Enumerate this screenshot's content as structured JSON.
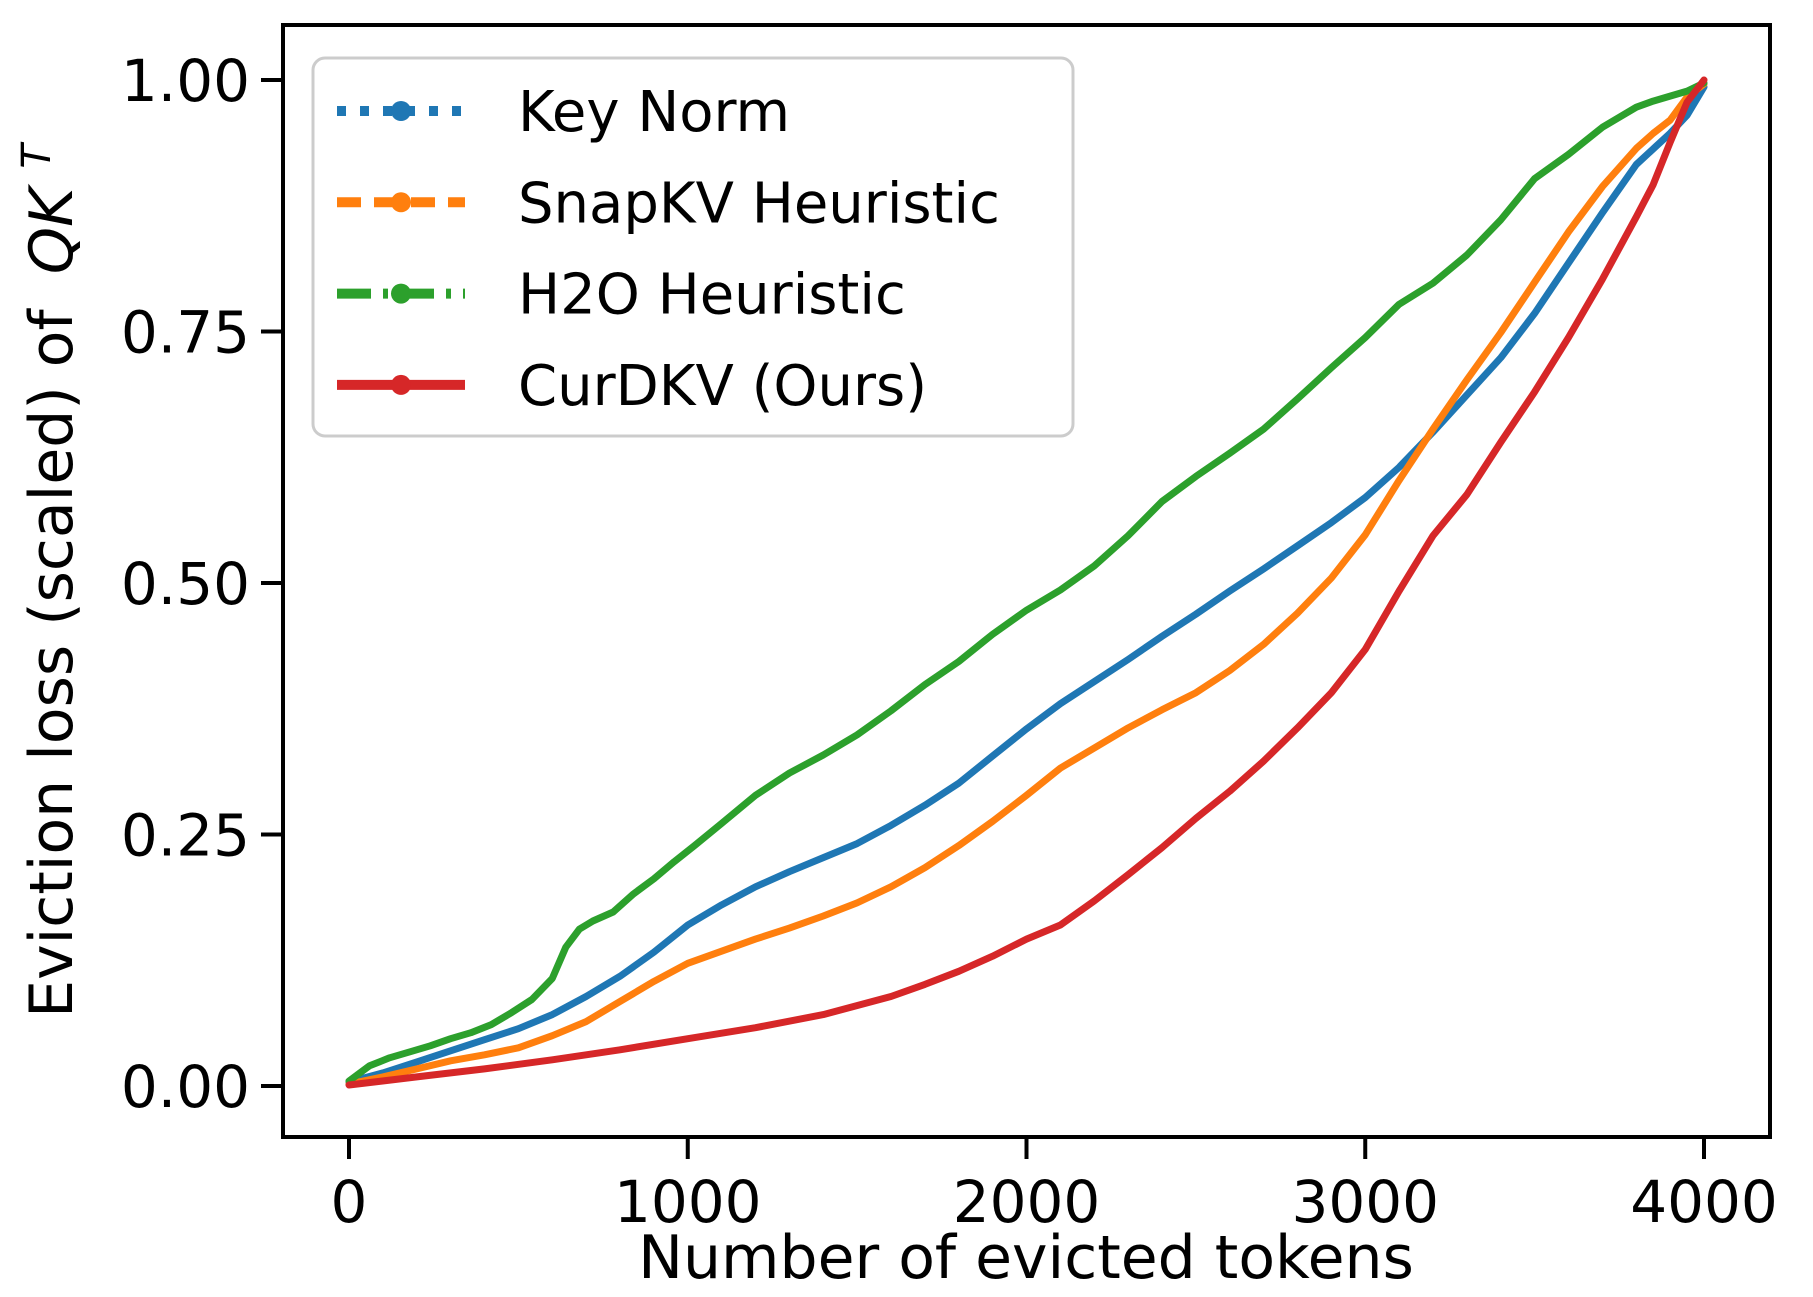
{
  "chart_data": {
    "type": "line",
    "title": "",
    "xlabel": "Number of evicted tokens",
    "ylabel_prefix": "Eviction loss (scaled) of",
    "ylabel_math": "QK",
    "ylabel_superscript": "T",
    "x_ticks": [
      0,
      1000,
      2000,
      3000,
      4000
    ],
    "x_tick_labels": [
      "0",
      "1000",
      "2000",
      "3000",
      "4000"
    ],
    "y_ticks": [
      0.0,
      0.25,
      0.5,
      0.75,
      1.0
    ],
    "y_tick_labels": [
      "0.00",
      "0.25",
      "0.50",
      "0.75",
      "1.00"
    ],
    "xlim": [
      0,
      4000
    ],
    "ylim": [
      0.0,
      1.0
    ],
    "grid": false,
    "legend_position": "upper left",
    "background_color": "#ffffff",
    "axis_color": "#000000",
    "legend_border_color": "#cccccc",
    "series": [
      {
        "name": "Key Norm",
        "color": "#1f77b4",
        "linestyle": "dotted",
        "marker": "circle",
        "points": [
          [
            0,
            0.004
          ],
          [
            100,
            0.013
          ],
          [
            200,
            0.024
          ],
          [
            300,
            0.035
          ],
          [
            400,
            0.046
          ],
          [
            500,
            0.057
          ],
          [
            600,
            0.071
          ],
          [
            700,
            0.089
          ],
          [
            800,
            0.109
          ],
          [
            900,
            0.133
          ],
          [
            1000,
            0.16
          ],
          [
            1100,
            0.18
          ],
          [
            1200,
            0.198
          ],
          [
            1300,
            0.213
          ],
          [
            1400,
            0.227
          ],
          [
            1500,
            0.241
          ],
          [
            1600,
            0.259
          ],
          [
            1700,
            0.279
          ],
          [
            1800,
            0.301
          ],
          [
            1900,
            0.328
          ],
          [
            2000,
            0.355
          ],
          [
            2100,
            0.38
          ],
          [
            2200,
            0.402
          ],
          [
            2300,
            0.424
          ],
          [
            2400,
            0.447
          ],
          [
            2500,
            0.469
          ],
          [
            2600,
            0.492
          ],
          [
            2700,
            0.514
          ],
          [
            2800,
            0.537
          ],
          [
            2900,
            0.56
          ],
          [
            3000,
            0.585
          ],
          [
            3100,
            0.615
          ],
          [
            3200,
            0.65
          ],
          [
            3300,
            0.687
          ],
          [
            3400,
            0.724
          ],
          [
            3500,
            0.768
          ],
          [
            3600,
            0.818
          ],
          [
            3700,
            0.868
          ],
          [
            3800,
            0.916
          ],
          [
            3900,
            0.947
          ],
          [
            3950,
            0.965
          ],
          [
            4000,
            0.993
          ]
        ]
      },
      {
        "name": "SnapKV Heuristic",
        "color": "#ff7f0e",
        "linestyle": "dashed",
        "marker": "circle",
        "points": [
          [
            0,
            0.002
          ],
          [
            100,
            0.009
          ],
          [
            200,
            0.017
          ],
          [
            300,
            0.025
          ],
          [
            400,
            0.031
          ],
          [
            500,
            0.038
          ],
          [
            600,
            0.05
          ],
          [
            700,
            0.064
          ],
          [
            800,
            0.084
          ],
          [
            900,
            0.104
          ],
          [
            1000,
            0.122
          ],
          [
            1100,
            0.134
          ],
          [
            1200,
            0.146
          ],
          [
            1300,
            0.157
          ],
          [
            1400,
            0.169
          ],
          [
            1500,
            0.182
          ],
          [
            1600,
            0.198
          ],
          [
            1700,
            0.217
          ],
          [
            1800,
            0.239
          ],
          [
            1900,
            0.263
          ],
          [
            2000,
            0.289
          ],
          [
            2100,
            0.316
          ],
          [
            2200,
            0.336
          ],
          [
            2300,
            0.356
          ],
          [
            2400,
            0.374
          ],
          [
            2500,
            0.391
          ],
          [
            2600,
            0.413
          ],
          [
            2700,
            0.439
          ],
          [
            2800,
            0.47
          ],
          [
            2900,
            0.505
          ],
          [
            3000,
            0.548
          ],
          [
            3100,
            0.602
          ],
          [
            3200,
            0.653
          ],
          [
            3300,
            0.702
          ],
          [
            3400,
            0.749
          ],
          [
            3500,
            0.799
          ],
          [
            3600,
            0.849
          ],
          [
            3700,
            0.894
          ],
          [
            3800,
            0.932
          ],
          [
            3850,
            0.947
          ],
          [
            3900,
            0.96
          ],
          [
            3950,
            0.983
          ],
          [
            4000,
            0.996
          ]
        ]
      },
      {
        "name": "H2O Heuristic",
        "color": "#2ca02c",
        "linestyle": "dashdot",
        "marker": "circle",
        "points": [
          [
            0,
            0.005
          ],
          [
            60,
            0.02
          ],
          [
            120,
            0.028
          ],
          [
            180,
            0.034
          ],
          [
            240,
            0.04
          ],
          [
            300,
            0.047
          ],
          [
            360,
            0.053
          ],
          [
            420,
            0.061
          ],
          [
            480,
            0.073
          ],
          [
            540,
            0.086
          ],
          [
            600,
            0.107
          ],
          [
            640,
            0.138
          ],
          [
            680,
            0.156
          ],
          [
            720,
            0.164
          ],
          [
            780,
            0.173
          ],
          [
            840,
            0.191
          ],
          [
            900,
            0.206
          ],
          [
            960,
            0.223
          ],
          [
            1020,
            0.239
          ],
          [
            1100,
            0.261
          ],
          [
            1200,
            0.289
          ],
          [
            1300,
            0.311
          ],
          [
            1400,
            0.329
          ],
          [
            1500,
            0.349
          ],
          [
            1600,
            0.373
          ],
          [
            1700,
            0.399
          ],
          [
            1800,
            0.422
          ],
          [
            1900,
            0.449
          ],
          [
            2000,
            0.473
          ],
          [
            2100,
            0.493
          ],
          [
            2200,
            0.517
          ],
          [
            2300,
            0.547
          ],
          [
            2400,
            0.581
          ],
          [
            2500,
            0.606
          ],
          [
            2600,
            0.629
          ],
          [
            2700,
            0.653
          ],
          [
            2800,
            0.683
          ],
          [
            2900,
            0.714
          ],
          [
            3000,
            0.744
          ],
          [
            3100,
            0.777
          ],
          [
            3200,
            0.798
          ],
          [
            3300,
            0.826
          ],
          [
            3400,
            0.861
          ],
          [
            3500,
            0.902
          ],
          [
            3600,
            0.926
          ],
          [
            3700,
            0.953
          ],
          [
            3750,
            0.963
          ],
          [
            3800,
            0.973
          ],
          [
            3850,
            0.979
          ],
          [
            3900,
            0.984
          ],
          [
            3950,
            0.989
          ],
          [
            4000,
            0.997
          ]
        ]
      },
      {
        "name": "CurDKV (Ours)",
        "color": "#d62728",
        "linestyle": "solid",
        "marker": "circle",
        "points": [
          [
            0,
            0.001
          ],
          [
            200,
            0.009
          ],
          [
            400,
            0.017
          ],
          [
            600,
            0.026
          ],
          [
            800,
            0.036
          ],
          [
            1000,
            0.047
          ],
          [
            1200,
            0.058
          ],
          [
            1400,
            0.071
          ],
          [
            1600,
            0.089
          ],
          [
            1700,
            0.101
          ],
          [
            1800,
            0.114
          ],
          [
            1900,
            0.129
          ],
          [
            2000,
            0.146
          ],
          [
            2100,
            0.16
          ],
          [
            2200,
            0.184
          ],
          [
            2300,
            0.21
          ],
          [
            2400,
            0.237
          ],
          [
            2500,
            0.266
          ],
          [
            2600,
            0.293
          ],
          [
            2700,
            0.323
          ],
          [
            2800,
            0.356
          ],
          [
            2900,
            0.391
          ],
          [
            3000,
            0.434
          ],
          [
            3100,
            0.492
          ],
          [
            3200,
            0.547
          ],
          [
            3300,
            0.588
          ],
          [
            3400,
            0.64
          ],
          [
            3500,
            0.69
          ],
          [
            3600,
            0.744
          ],
          [
            3700,
            0.802
          ],
          [
            3800,
            0.864
          ],
          [
            3850,
            0.896
          ],
          [
            3900,
            0.938
          ],
          [
            3950,
            0.978
          ],
          [
            4000,
            1.0
          ]
        ]
      }
    ]
  }
}
